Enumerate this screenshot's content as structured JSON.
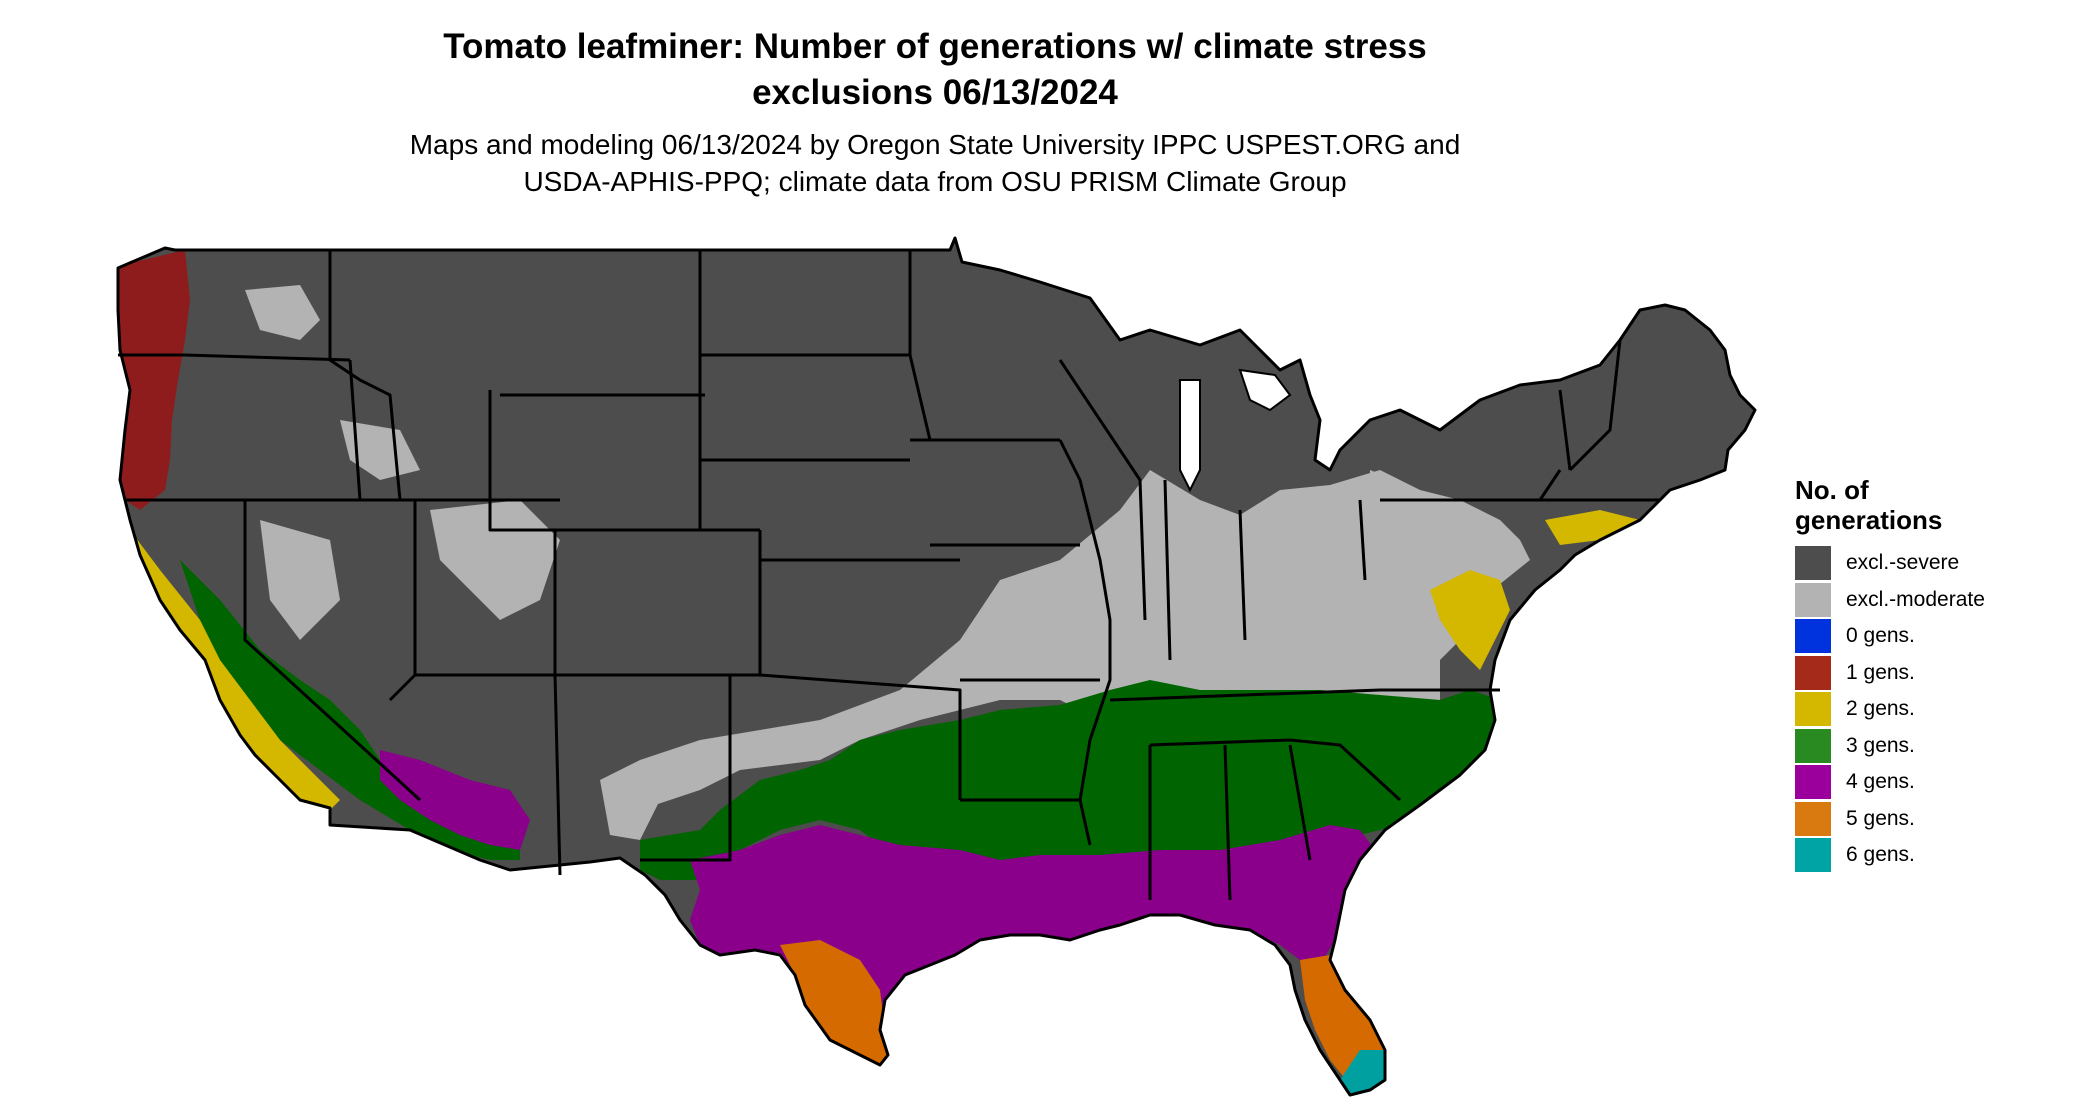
{
  "title": {
    "line1": "Tomato leafminer: Number of generations w/ climate stress",
    "line2": "exclusions 06/13/2024"
  },
  "subtitle": {
    "line1": "Maps and modeling 06/13/2024 by Oregon State University IPPC USPEST.ORG and",
    "line2": "USDA-APHIS-PPQ; climate data from OSU PRISM Climate Group"
  },
  "legend": {
    "title_line1": "No. of",
    "title_line2": "generations",
    "items": [
      {
        "label": "excl.-severe",
        "color": "#4d4d4d"
      },
      {
        "label": "excl.-moderate",
        "color": "#b3b3b3"
      },
      {
        "label": "0 gens.",
        "color": "#0033dd"
      },
      {
        "label": "1 gens.",
        "color": "#a52a1a"
      },
      {
        "label": "2 gens.",
        "color": "#d4b800"
      },
      {
        "label": "3 gens.",
        "color": "#2a8a22"
      },
      {
        "label": "4 gens.",
        "color": "#9c009c"
      },
      {
        "label": "5 gens.",
        "color": "#d97a10"
      },
      {
        "label": "6 gens.",
        "color": "#00a4a4"
      }
    ]
  },
  "map": {
    "region": "Contiguous United States",
    "zone_colors": {
      "excl_severe": "#4d4d4d",
      "excl_moderate": "#b3b3b3",
      "gen1": "#8f1c1c",
      "gen2": "#d4b800",
      "gen3": "#006400",
      "gen4": "#8a008a",
      "gen5": "#d46a00",
      "gen6": "#00a0a0",
      "state_border": "#000000"
    }
  }
}
